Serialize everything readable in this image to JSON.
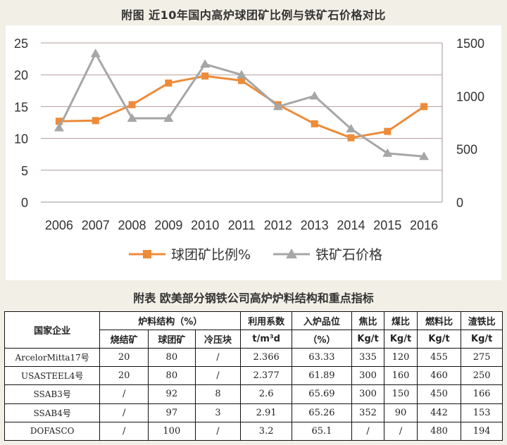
{
  "page_title": "附图  近10年国内高炉球团矿比例与铁矿石价格对比",
  "chart_data": {
    "type": "line",
    "title": "附图  近10年国内高炉球团矿比例与铁矿石价格对比",
    "categories": [
      "2006",
      "2007",
      "2008",
      "2009",
      "2010",
      "2011",
      "2012",
      "2013",
      "2014",
      "2015",
      "2016"
    ],
    "y_left": {
      "range": [
        0,
        25
      ],
      "ticks": [
        "0",
        "5",
        "10",
        "15",
        "20",
        "25"
      ]
    },
    "y_right": {
      "range": [
        0,
        1500
      ],
      "ticks": [
        "0",
        "500",
        "1000",
        "1500"
      ]
    },
    "grid": true,
    "legend_position": "bottom",
    "series": [
      {
        "name": "球团矿比例%",
        "axis": "left",
        "color": "#ED8B3A",
        "marker": "square",
        "values": [
          12.7,
          12.8,
          15.3,
          18.7,
          19.8,
          19.1,
          15.3,
          12.3,
          10.1,
          11.1,
          15.0
        ]
      },
      {
        "name": "铁矿石价格",
        "axis": "right",
        "color": "#A6A6A6",
        "marker": "triangle",
        "values": [
          700,
          1400,
          790,
          790,
          1300,
          1200,
          900,
          1000,
          690,
          460,
          430
        ]
      }
    ]
  },
  "table": {
    "title": "附表  欧美部分钢铁公司高炉炉料结构和重点指标",
    "header_company": "国家企业",
    "header_burden": "炉料结构（%）",
    "sub_headers": [
      "烧结矿",
      "球团矿",
      "冷压块"
    ],
    "header_util": "利用系数",
    "header_util_unit": "t/m³d",
    "header_grade": "入炉品位",
    "header_grade_unit": "（%）",
    "header_coke": "焦比",
    "header_coke_unit": "Kg/t",
    "header_coal": "煤比",
    "header_coal_unit": "Kg/t",
    "header_fuel": "燃料比",
    "header_fuel_unit": "Kg/t",
    "header_slag": "渣铁比",
    "header_slag_unit": "Kg/t",
    "rows": [
      {
        "company": "ArcelorMitta17号",
        "sinter": "20",
        "pellet": "80",
        "briquette": "/",
        "util": "2.366",
        "grade": "63.33",
        "coke": "335",
        "coal": "120",
        "fuel": "455",
        "slag": "275"
      },
      {
        "company": "USASTEEL4号",
        "sinter": "20",
        "pellet": "80",
        "briquette": "/",
        "util": "2.377",
        "grade": "61.89",
        "coke": "300",
        "coal": "160",
        "fuel": "460",
        "slag": "250"
      },
      {
        "company": "SSAB3号",
        "sinter": "/",
        "pellet": "92",
        "briquette": "8",
        "util": "2.6",
        "grade": "65.69",
        "coke": "300",
        "coal": "150",
        "fuel": "450",
        "slag": "166"
      },
      {
        "company": "SSAB4号",
        "sinter": "/",
        "pellet": "97",
        "briquette": "3",
        "util": "2.91",
        "grade": "65.26",
        "coke": "352",
        "coal": "90",
        "fuel": "442",
        "slag": "153"
      },
      {
        "company": "DOFASCO",
        "sinter": "/",
        "pellet": "100",
        "briquette": "/",
        "util": "3.2",
        "grade": "65.1",
        "coke": "/",
        "coal": "/",
        "fuel": "480",
        "slag": "194"
      }
    ]
  }
}
